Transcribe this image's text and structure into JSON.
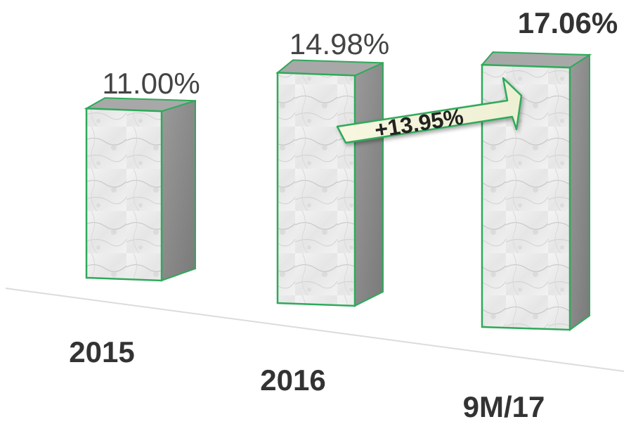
{
  "chart_data": {
    "type": "bar",
    "style": "3d-marble-columns",
    "categories": [
      "2015",
      "2016",
      "9M/17"
    ],
    "values": [
      11.0,
      14.98,
      17.06
    ],
    "value_labels": [
      "11.00%",
      "14.98%",
      "17.06%"
    ],
    "unit": "%",
    "title": "",
    "xlabel": "",
    "ylabel": "",
    "grid": false,
    "legend": false,
    "annotation": {
      "text": "+13.95%",
      "from_category": "2016",
      "to_category": "9M/17",
      "shape": "arrow"
    }
  },
  "colors": {
    "column_border": "#2eaa5a",
    "column_front": "#ececec",
    "column_side": "#8c8c8c",
    "column_top": "#a8a8a8",
    "value_label": "#444444",
    "value_label_emphasis": "#333333",
    "category_label": "#333333",
    "baseline": "#dcdcdc",
    "arrow_fill": "#f5f5dc",
    "arrow_border": "#2eaa5a",
    "arrow_text": "#222222"
  }
}
